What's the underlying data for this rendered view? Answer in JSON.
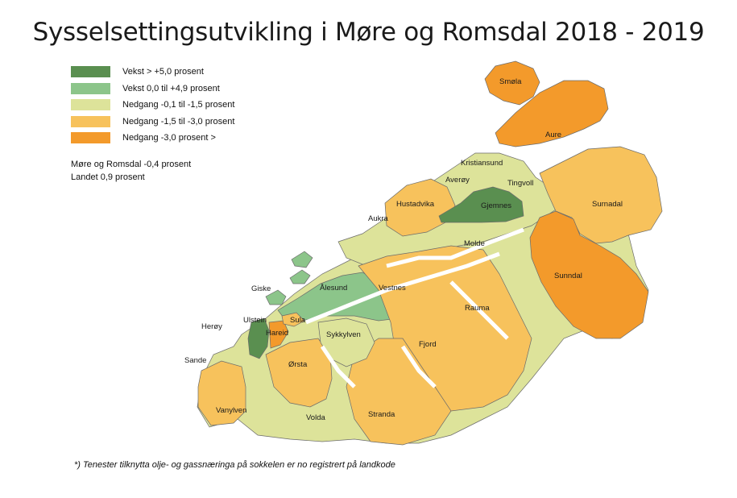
{
  "title": "Sysselsettingsutvikling i Møre og Romsdal 2018 - 2019",
  "legend": [
    {
      "label": "Vekst > +5,0 prosent",
      "color": "#5a8f50"
    },
    {
      "label": "Vekst 0,0 til +4,9 prosent",
      "color": "#8cc58a"
    },
    {
      "label": "Nedgang -0,1 til -1,5 prosent",
      "color": "#dde39a"
    },
    {
      "label": "Nedgang -1,5 til -3,0 prosent",
      "color": "#f7c25c"
    },
    {
      "label": "Nedgang -3,0 prosent >",
      "color": "#f39a2b"
    }
  ],
  "summary": [
    "Møre og Romsdal -0,4 prosent",
    "Landet 0,9 prosent"
  ],
  "footnote": "*) Tenester tilknytta olje- og gassnæringa på sokkelen er no registrert på landkode",
  "municipalities": [
    {
      "name": "Smøla",
      "category": 4
    },
    {
      "name": "Aure",
      "category": 4
    },
    {
      "name": "Kristiansund",
      "category": 2
    },
    {
      "name": "Averøy",
      "category": 2
    },
    {
      "name": "Tingvoll",
      "category": 2
    },
    {
      "name": "Surnadal",
      "category": 3
    },
    {
      "name": "Hustadvika",
      "category": 3
    },
    {
      "name": "Gjemnes",
      "category": 0
    },
    {
      "name": "Aukra",
      "category": 2
    },
    {
      "name": "Molde",
      "category": 2
    },
    {
      "name": "Sunndal",
      "category": 4
    },
    {
      "name": "Giske",
      "category": 1
    },
    {
      "name": "Ålesund",
      "category": 1
    },
    {
      "name": "Vestnes",
      "category": 3
    },
    {
      "name": "Rauma",
      "category": 3
    },
    {
      "name": "Herøy",
      "category": 2
    },
    {
      "name": "Ulstein",
      "category": 0
    },
    {
      "name": "Hareid",
      "category": 4
    },
    {
      "name": "Sula",
      "category": 3
    },
    {
      "name": "Sykkylven",
      "category": 2
    },
    {
      "name": "Fjord",
      "category": 3
    },
    {
      "name": "Sande",
      "category": 3
    },
    {
      "name": "Ørsta",
      "category": 3
    },
    {
      "name": "Vanylven",
      "category": 3
    },
    {
      "name": "Volda",
      "category": 2
    },
    {
      "name": "Stranda",
      "category": 3
    }
  ]
}
